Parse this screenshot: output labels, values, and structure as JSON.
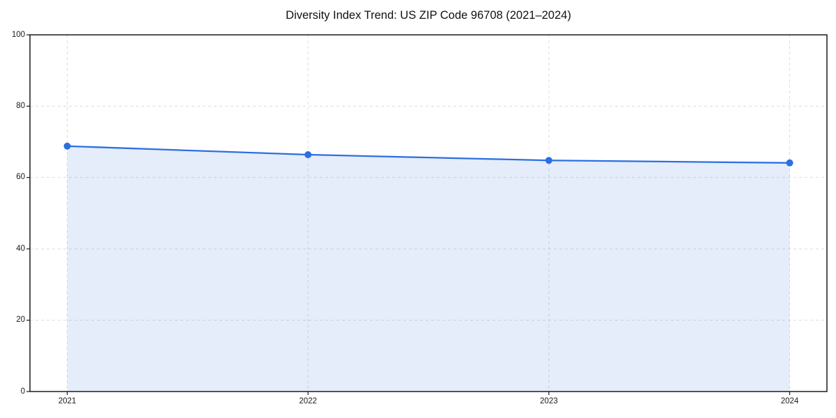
{
  "figure": {
    "background": "#ffffff"
  },
  "chart_data": {
    "type": "line",
    "title": "Diversity Index Trend: US ZIP Code 96708 (2021–2024)",
    "x": [
      2021,
      2022,
      2023,
      2024
    ],
    "values": [
      68.8,
      66.4,
      64.8,
      64.1
    ],
    "xticklabels": [
      "2021",
      "2022",
      "2023",
      "2024"
    ],
    "yticks": [
      0,
      20,
      40,
      60,
      80,
      100
    ],
    "ylim": [
      0,
      100
    ],
    "xlabel": "",
    "ylabel": "",
    "legend": "none",
    "grid": "dashed, both axes",
    "marker": "circle",
    "area_fill": true,
    "colors": {
      "line": "#2c6fe0",
      "marker": "#2c6fe0",
      "fill": "rgba(44,111,224,0.12)",
      "grid": "#dcdcdc",
      "spine": "#1a1a1a",
      "tick_text": "#1a1a1a",
      "title_text": "#111111"
    }
  }
}
